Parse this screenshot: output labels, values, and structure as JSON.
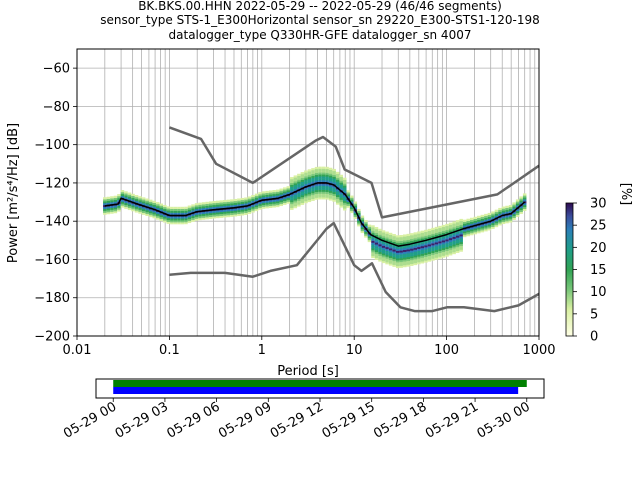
{
  "header": {
    "line1": "BK.BKS.00.HHN   2022-05-29 -- 2022-05-29  (46/46 segments)",
    "line2": "sensor_type STS-1_E300Horizontal sensor_sn 29220_E300-STS1-120-198",
    "line3": "datalogger_type Q330HR-GFE datalogger_sn 4007"
  },
  "chart_data": [
    {
      "type": "heatmap",
      "xlabel": "Period [s]",
      "ylabel": "Power [m²/s⁴/Hz] [dB]",
      "xscale": "log",
      "xlim": [
        0.01,
        1000
      ],
      "ylim": [
        -200,
        -50
      ],
      "x_ticks": [
        0.01,
        0.1,
        1,
        10,
        100,
        1000
      ],
      "x_tick_labels": [
        "0.01",
        "0.1",
        "1",
        "10",
        "100",
        "1000"
      ],
      "y_ticks": [
        -60,
        -80,
        -100,
        -120,
        -140,
        -160,
        -180,
        -200
      ],
      "y_tick_labels": [
        "−60",
        "−80",
        "−100",
        "−120",
        "−140",
        "−160",
        "−180",
        "−200"
      ],
      "grid": true,
      "series": [
        {
          "name": "",
          "role": "mean",
          "color": "#000000",
          "points": [
            [
              0.02,
              -132
            ],
            [
              0.028,
              -131
            ],
            [
              0.03,
              -128
            ],
            [
              0.045,
              -131
            ],
            [
              0.07,
              -134
            ],
            [
              0.1,
              -137
            ],
            [
              0.15,
              -137
            ],
            [
              0.2,
              -135
            ],
            [
              0.3,
              -134
            ],
            [
              0.5,
              -133
            ],
            [
              0.7,
              -132
            ],
            [
              1,
              -129
            ],
            [
              1.5,
              -128
            ],
            [
              2,
              -126
            ],
            [
              3,
              -122
            ],
            [
              4,
              -120
            ],
            [
              5,
              -120
            ],
            [
              6,
              -121
            ],
            [
              8,
              -126
            ],
            [
              10,
              -133
            ],
            [
              12,
              -141
            ],
            [
              15,
              -147
            ],
            [
              20,
              -150
            ],
            [
              30,
              -153
            ],
            [
              40,
              -152
            ],
            [
              60,
              -150
            ],
            [
              100,
              -147
            ],
            [
              150,
              -144
            ],
            [
              300,
              -140
            ],
            [
              400,
              -137
            ],
            [
              500,
              -136
            ],
            [
              700,
              -130
            ]
          ]
        },
        {
          "name": "",
          "role": "nhnm",
          "color": "#666666",
          "points": [
            [
              0.1,
              -91
            ],
            [
              0.22,
              -97
            ],
            [
              0.32,
              -110
            ],
            [
              0.8,
              -120
            ],
            [
              3.8,
              -98
            ],
            [
              4.6,
              -96
            ],
            [
              6.3,
              -101
            ],
            [
              7.9,
              -113
            ],
            [
              15.4,
              -120
            ],
            [
              20,
              -138
            ],
            [
              354.8,
              -126
            ],
            [
              1000,
              -111
            ]
          ]
        },
        {
          "name": "",
          "role": "nlnm",
          "color": "#666666",
          "points": [
            [
              0.1,
              -168
            ],
            [
              0.17,
              -167
            ],
            [
              0.4,
              -167
            ],
            [
              0.8,
              -169
            ],
            [
              1.24,
              -166
            ],
            [
              2.4,
              -163
            ],
            [
              4.3,
              -148
            ],
            [
              5,
              -144
            ],
            [
              6,
              -141
            ],
            [
              10,
              -163
            ],
            [
              12,
              -166
            ],
            [
              15.6,
              -162
            ],
            [
              21.9,
              -177
            ],
            [
              31.6,
              -185
            ],
            [
              45,
              -187
            ],
            [
              70,
              -187
            ],
            [
              101,
              -185
            ],
            [
              154,
              -185
            ],
            [
              328,
              -187
            ],
            [
              600,
              -184
            ],
            [
              1000,
              -178
            ]
          ]
        }
      ],
      "density": {
        "band_color_low": "#b9dc88",
        "band_color_mid": "#2a9e6a",
        "band_color_high": "#3b1f6b"
      },
      "colorbar": {
        "label": "[%]",
        "range": [
          0,
          30
        ],
        "ticks": [
          0,
          5,
          10,
          15,
          20,
          25,
          30
        ],
        "tick_labels": [
          "0",
          "5",
          "10",
          "15",
          "20",
          "25",
          "30"
        ]
      }
    },
    {
      "type": "bar",
      "role": "data-coverage",
      "xlim": [
        "2022-05-28 23:00",
        "2022-05-30 01:00"
      ],
      "x_ticks": [
        "2022-05-29 00:00",
        "2022-05-29 03:00",
        "2022-05-29 06:00",
        "2022-05-29 09:00",
        "2022-05-29 12:00",
        "2022-05-29 15:00",
        "2022-05-29 18:00",
        "2022-05-29 21:00",
        "2022-05-30 00:00"
      ],
      "x_tick_labels": [
        "05-29 00",
        "05-29 03",
        "05-29 06",
        "05-29 09",
        "05-29 12",
        "05-29 15",
        "05-29 18",
        "05-29 21",
        "05-30 00"
      ],
      "series": [
        {
          "name": "",
          "color": "#008000",
          "start": "2022-05-29 00:00",
          "end": "2022-05-30 00:00"
        },
        {
          "name": "",
          "color": "#0000ff",
          "start": "2022-05-29 00:00",
          "end": "2022-05-29 23:30"
        }
      ]
    }
  ]
}
